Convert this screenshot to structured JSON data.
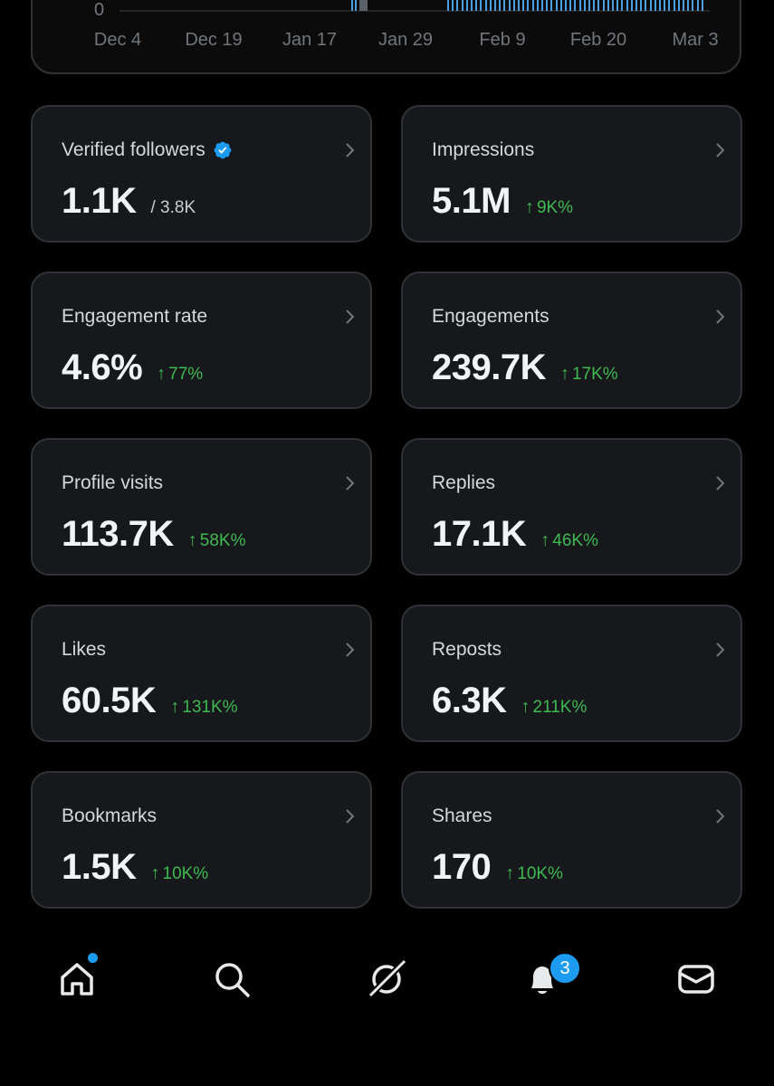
{
  "chart": {
    "y_zero_label": "0",
    "x_ticks": [
      "Dec 4",
      "Dec 19",
      "Jan 17",
      "Jan 29",
      "Feb 9",
      "Feb 20",
      "Mar 3"
    ]
  },
  "cards": [
    {
      "label": "Verified followers",
      "value": "1.1K",
      "sub": "/ 3.8K",
      "change": "",
      "verified": true
    },
    {
      "label": "Impressions",
      "value": "5.1M",
      "sub": "",
      "change": "9K%"
    },
    {
      "label": "Engagement rate",
      "value": "4.6%",
      "sub": "",
      "change": "77%"
    },
    {
      "label": "Engagements",
      "value": "239.7K",
      "sub": "",
      "change": "17K%"
    },
    {
      "label": "Profile visits",
      "value": "113.7K",
      "sub": "",
      "change": "58K%"
    },
    {
      "label": "Replies",
      "value": "17.1K",
      "sub": "",
      "change": "46K%"
    },
    {
      "label": "Likes",
      "value": "60.5K",
      "sub": "",
      "change": "131K%"
    },
    {
      "label": "Reposts",
      "value": "6.3K",
      "sub": "",
      "change": "211K%"
    },
    {
      "label": "Bookmarks",
      "value": "1.5K",
      "sub": "",
      "change": "10K%"
    },
    {
      "label": "Shares",
      "value": "170",
      "sub": "",
      "change": "10K%"
    }
  ],
  "nav": {
    "items": [
      "home-icon",
      "search-icon",
      "grok-icon",
      "notifications-icon",
      "messages-icon"
    ],
    "notification_count": "3"
  },
  "colors": {
    "accent": "#1d9bf0",
    "positive": "#3fb950",
    "card_bg": "#16181c",
    "border": "#2f3336"
  }
}
